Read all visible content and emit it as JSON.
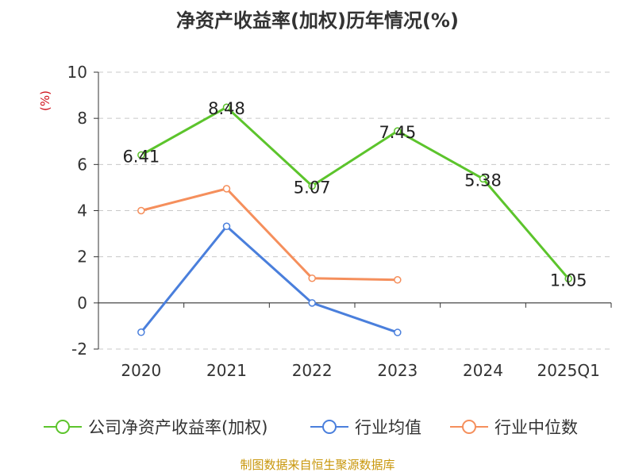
{
  "title": "净资产收益率(加权)历年情况(%)",
  "source": "制图数据来自恒生聚源数据库",
  "chart_data": {
    "type": "line",
    "title": "净资产收益率(加权)历年情况(%)",
    "ylabel": "(%)",
    "xlabel": "",
    "categories": [
      "2020",
      "2021",
      "2022",
      "2023",
      "2024",
      "2025Q1"
    ],
    "ylim": [
      -2,
      10
    ],
    "yticks": [
      -2,
      0,
      2,
      4,
      6,
      8,
      10
    ],
    "grid": true,
    "legend_position": "bottom",
    "series": [
      {
        "name": "公司净资产收益率(加权)",
        "color": "#5cc42c",
        "show_labels": true,
        "values": [
          6.41,
          8.48,
          5.07,
          7.45,
          5.38,
          1.05
        ],
        "labels": [
          "6.41",
          "8.48",
          "5.07",
          "7.45",
          "5.38",
          "1.05"
        ]
      },
      {
        "name": "行业均值",
        "color": "#4a7fdc",
        "show_labels": false,
        "values": [
          -1.27,
          3.32,
          0.0,
          -1.28,
          null,
          null
        ]
      },
      {
        "name": "行业中位数",
        "color": "#f58f5c",
        "show_labels": false,
        "values": [
          4.0,
          4.95,
          1.07,
          1.0,
          null,
          null
        ]
      }
    ]
  }
}
